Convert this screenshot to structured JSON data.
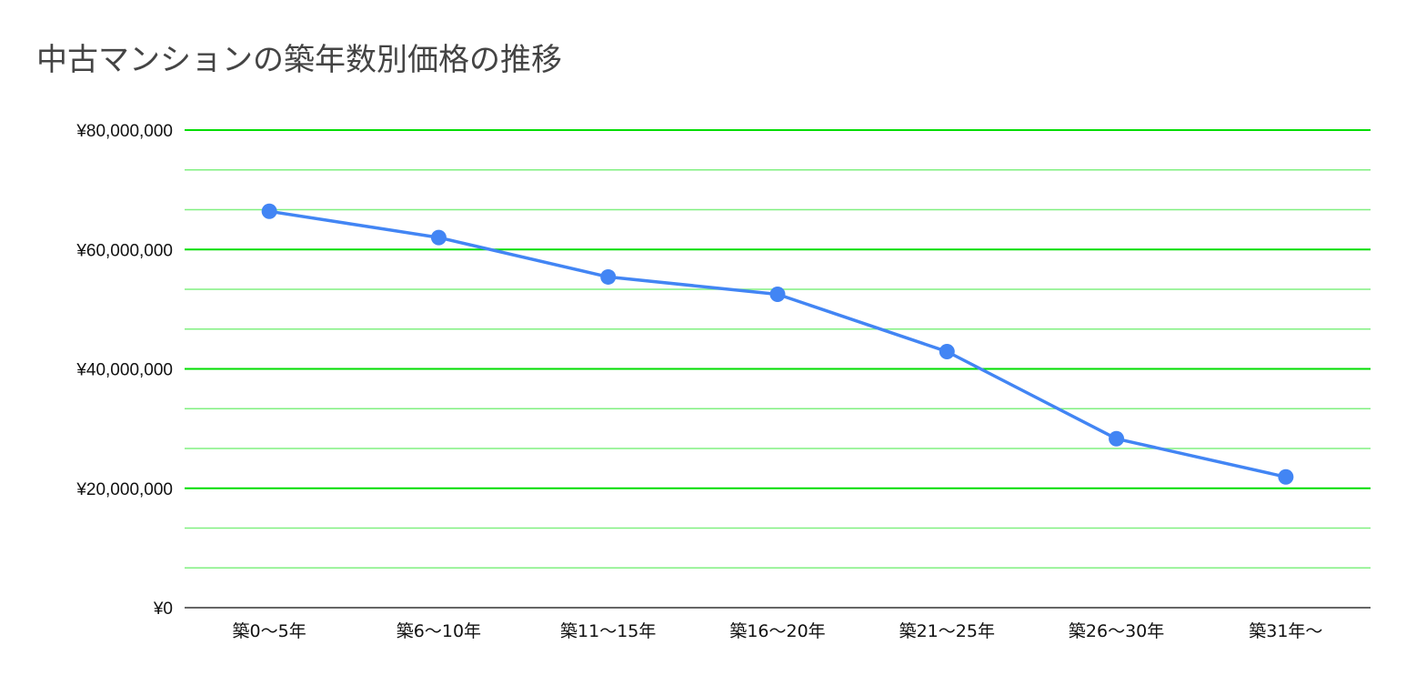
{
  "chart_data": {
    "type": "line",
    "title": "中古マンションの築年数別価格の推移",
    "xlabel": "",
    "ylabel": "",
    "categories": [
      "築0〜5年",
      "築6〜10年",
      "築11〜15年",
      "築16〜20年",
      "築21〜25年",
      "築26〜30年",
      "築31年〜"
    ],
    "series": [
      {
        "values": [
          66400000,
          62000000,
          55400000,
          52500000,
          42900000,
          28300000,
          21900000
        ]
      }
    ],
    "ylim": [
      0,
      80000000
    ],
    "yticks": [
      0,
      20000000,
      40000000,
      60000000,
      80000000
    ],
    "ytick_labels": [
      "¥0",
      "¥20,000,000",
      "¥40,000,000",
      "¥60,000,000",
      "¥80,000,000"
    ],
    "minor_grid_step": 6666667,
    "grid": true,
    "legend": "none",
    "colors": {
      "line": "#4285f4",
      "major_grid": "#00dd00",
      "minor_grid": "#80f080",
      "baseline": "#333333"
    }
  }
}
